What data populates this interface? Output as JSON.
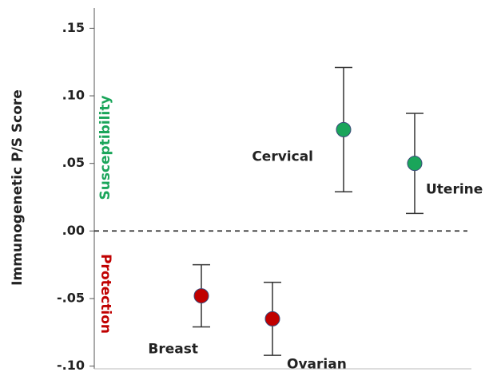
{
  "chart_data": {
    "type": "errorbar",
    "y_label": "Immunogenetic P/S Score",
    "categories": [
      "Breast",
      "Ovarian",
      "Cervical",
      "Uterine"
    ],
    "values": [
      -0.048,
      -0.065,
      0.075,
      0.05
    ],
    "errors": [
      0.023,
      0.027,
      0.046,
      0.037
    ],
    "colors": [
      "#c00000",
      "#c00000",
      "#1aa55a",
      "#1aa55a"
    ],
    "annotations": [
      {
        "text": "Susceptibility",
        "color": "#1aa55a"
      },
      {
        "text": "Protection",
        "color": "#c00000"
      }
    ],
    "reference_line": 0,
    "ylim": [
      -0.102,
      0.165
    ],
    "yticks": [
      {
        "value": -0.1,
        "label": "-.10"
      },
      {
        "value": -0.05,
        "label": "-.05"
      },
      {
        "value": 0,
        "label": ".00"
      },
      {
        "value": 0.05,
        "label": ".05"
      },
      {
        "value": 0.1,
        "label": ".10"
      },
      {
        "value": 0.15,
        "label": ".15"
      }
    ]
  }
}
